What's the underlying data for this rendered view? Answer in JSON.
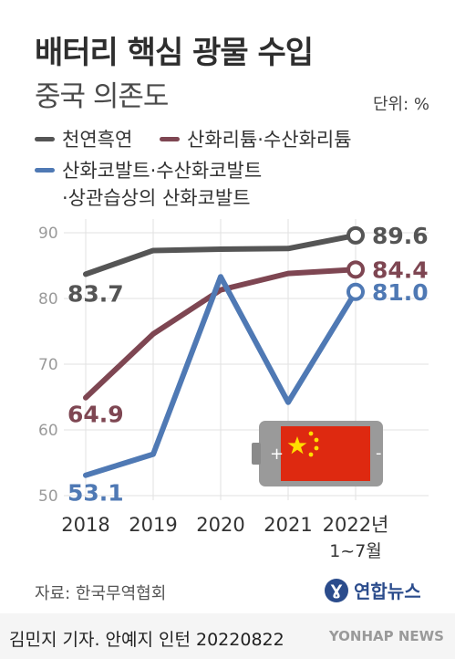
{
  "title": "배터리 핵심 광물 수입",
  "subtitle": "중국 의존도",
  "unit_label": "단위: %",
  "legend": [
    {
      "label": "천연흑연",
      "color": "#555555"
    },
    {
      "label": "산화리튬·수산화리튬",
      "color": "#7e4652"
    },
    {
      "label": "산화코발트·수산화코발트",
      "label2": "·상관습상의 산화코발트",
      "color": "#4f79b4"
    }
  ],
  "chart_data": {
    "type": "line",
    "categories": [
      "2018",
      "2019",
      "2020",
      "2021",
      "2022년"
    ],
    "category_sublabels": [
      "",
      "",
      "",
      "",
      "1~7월"
    ],
    "ylim": [
      50,
      90
    ],
    "yticks": [
      50,
      60,
      70,
      80,
      90
    ],
    "grid": true,
    "series": [
      {
        "name": "천연흑연",
        "color": "#555555",
        "values": [
          83.7,
          87.3,
          87.5,
          87.6,
          89.6
        ],
        "start_label": "83.7",
        "end_label": "89.6"
      },
      {
        "name": "산화리튬·수산화리튬",
        "color": "#7e4652",
        "values": [
          64.9,
          74.6,
          81.3,
          83.8,
          84.4
        ],
        "start_label": "64.9",
        "end_label": "84.4"
      },
      {
        "name": "산화코발트·수산화코발트·상관습상의 산화코발트",
        "color": "#4f79b4",
        "values": [
          53.1,
          56.3,
          83.3,
          64.2,
          81.0
        ],
        "start_label": "53.1",
        "end_label": "81.0"
      }
    ]
  },
  "source": "자료: 한국무역협회",
  "logo_text": "연합뉴스",
  "credit": "김민지 기자. 안예지 인턴  20220822",
  "watermark": "YONHAP NEWS",
  "illustration": "china-flag-battery-icon"
}
